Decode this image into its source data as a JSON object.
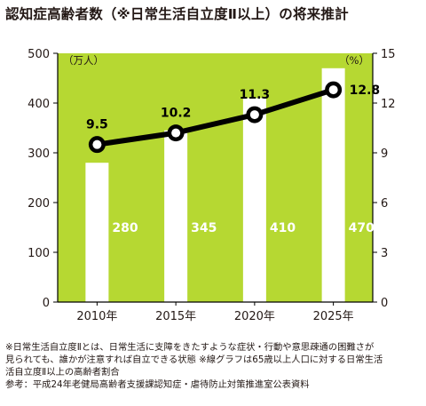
{
  "title": "認知症高齢者数（※日常生活自立度Ⅱ以上）の将来推計",
  "colors": {
    "plot_background": "#b6d832",
    "bar": "#ffffff",
    "line": "#000000",
    "text": "#231815",
    "bar_value_text": "#ffffff"
  },
  "chart_data": {
    "type": "bar",
    "title": "認知症高齢者数（※日常生活自立度Ⅱ以上）の将来推計",
    "categories": [
      "2010年",
      "2015年",
      "2020年",
      "2025年"
    ],
    "series": [
      {
        "type": "bar",
        "axis": "left",
        "values": [
          280,
          345,
          410,
          470
        ]
      },
      {
        "type": "line",
        "axis": "right",
        "values": [
          9.5,
          10.2,
          11.3,
          12.8
        ]
      }
    ],
    "left_axis": {
      "unit": "（万人）",
      "range": [
        0,
        500
      ],
      "ticks": [
        0,
        100,
        200,
        300,
        400,
        500
      ]
    },
    "right_axis": {
      "unit": "（%）",
      "range": [
        0,
        15
      ],
      "ticks": [
        0,
        3,
        6,
        9,
        12,
        15
      ]
    },
    "grid": false,
    "legend": "none"
  },
  "notes": {
    "line1": "※日常生活自立度Ⅱとは、日常生活に支障をきたすような症状・行動や意思疎通の困難さが",
    "line2": "見られても、誰かが注意すれば自立できる状態 ※線グラフは65歳以上人口に対する日常生活",
    "line3": "活自立度Ⅱ以上の高齢者割合",
    "source": "参考：平成24年老健局高齢者支援課認知症・虐待防止対策推進室公表資料"
  }
}
